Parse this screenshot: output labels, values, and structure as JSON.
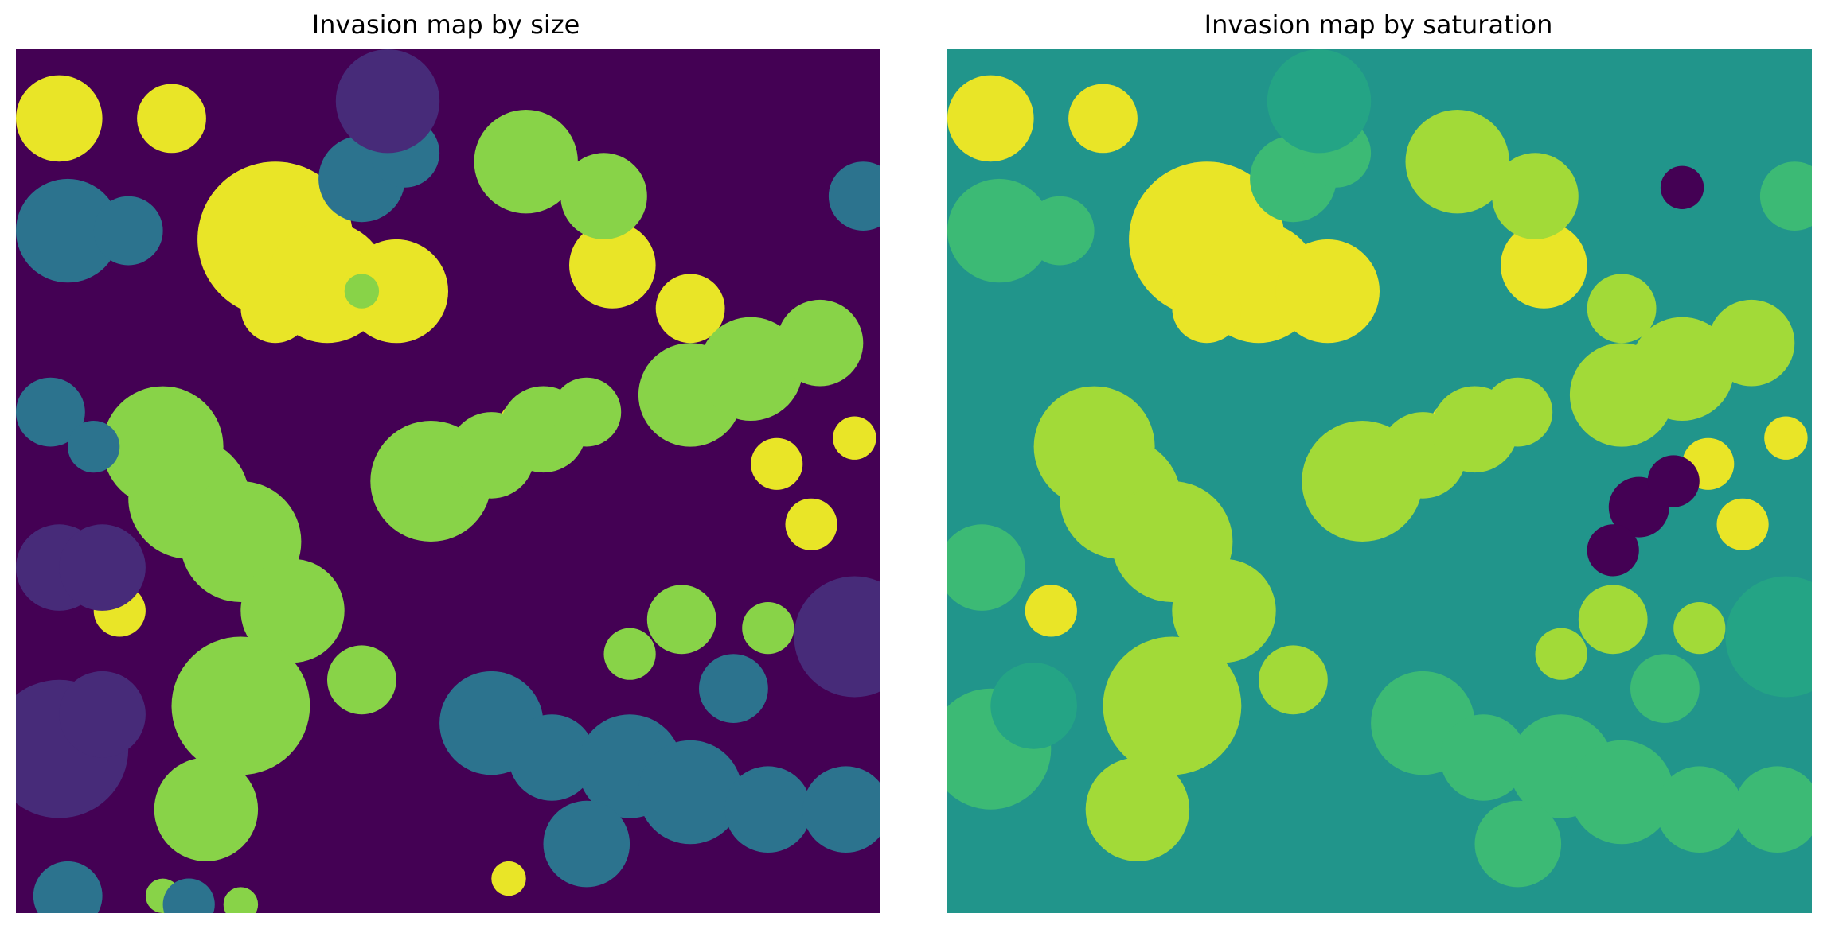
{
  "chart_data": [
    {
      "type": "heatmap",
      "title": "Invasion map by size",
      "xlabel": "",
      "ylabel": "",
      "axes_visible": false,
      "grid": false,
      "legend": "none",
      "colormap": "viridis",
      "background_value": 0.0,
      "regions": [
        {
          "value": 0.97,
          "blobs": [
            [
              0.05,
              0.92,
              0.05
            ],
            [
              0.18,
              0.92,
              0.04
            ],
            [
              0.3,
              0.78,
              0.09
            ],
            [
              0.36,
              0.73,
              0.07
            ],
            [
              0.3,
              0.7,
              0.04
            ],
            [
              0.44,
              0.72,
              0.06
            ],
            [
              0.69,
              0.75,
              0.05
            ],
            [
              0.78,
              0.7,
              0.04
            ],
            [
              0.88,
              0.52,
              0.03
            ],
            [
              0.92,
              0.45,
              0.03
            ],
            [
              0.97,
              0.55,
              0.025
            ],
            [
              0.12,
              0.35,
              0.03
            ],
            [
              0.58,
              0.57,
              0.02
            ],
            [
              0.57,
              0.04,
              0.02
            ]
          ]
        },
        {
          "value": 0.82,
          "blobs": [
            [
              0.2,
              0.48,
              0.07
            ],
            [
              0.17,
              0.54,
              0.07
            ],
            [
              0.26,
              0.43,
              0.07
            ],
            [
              0.32,
              0.35,
              0.06
            ],
            [
              0.26,
              0.24,
              0.08
            ],
            [
              0.22,
              0.12,
              0.06
            ],
            [
              0.4,
              0.27,
              0.04
            ],
            [
              0.48,
              0.5,
              0.07
            ],
            [
              0.55,
              0.53,
              0.05
            ],
            [
              0.61,
              0.56,
              0.05
            ],
            [
              0.66,
              0.58,
              0.04
            ],
            [
              0.78,
              0.6,
              0.06
            ],
            [
              0.85,
              0.63,
              0.06
            ],
            [
              0.93,
              0.66,
              0.05
            ],
            [
              0.59,
              0.87,
              0.06
            ],
            [
              0.68,
              0.83,
              0.05
            ],
            [
              0.71,
              0.3,
              0.03
            ],
            [
              0.77,
              0.34,
              0.04
            ],
            [
              0.87,
              0.33,
              0.03
            ],
            [
              0.4,
              0.72,
              0.02
            ],
            [
              0.17,
              0.02,
              0.02
            ],
            [
              0.26,
              0.01,
              0.02
            ]
          ]
        },
        {
          "value": 0.38,
          "blobs": [
            [
              0.06,
              0.79,
              0.06
            ],
            [
              0.13,
              0.79,
              0.04
            ],
            [
              0.04,
              0.58,
              0.04
            ],
            [
              0.09,
              0.54,
              0.03
            ],
            [
              0.4,
              0.85,
              0.05
            ],
            [
              0.45,
              0.88,
              0.04
            ],
            [
              0.98,
              0.83,
              0.04
            ],
            [
              0.55,
              0.22,
              0.06
            ],
            [
              0.62,
              0.18,
              0.05
            ],
            [
              0.71,
              0.17,
              0.06
            ],
            [
              0.78,
              0.14,
              0.06
            ],
            [
              0.87,
              0.12,
              0.05
            ],
            [
              0.96,
              0.12,
              0.05
            ],
            [
              0.66,
              0.08,
              0.05
            ],
            [
              0.83,
              0.26,
              0.04
            ],
            [
              0.06,
              0.02,
              0.04
            ],
            [
              0.2,
              0.01,
              0.03
            ]
          ]
        },
        {
          "value": 0.12,
          "blobs": [
            [
              0.43,
              0.94,
              0.06
            ],
            [
              0.05,
              0.4,
              0.05
            ],
            [
              0.1,
              0.4,
              0.05
            ],
            [
              0.05,
              0.19,
              0.08
            ],
            [
              0.1,
              0.23,
              0.05
            ],
            [
              0.97,
              0.32,
              0.07
            ]
          ]
        }
      ]
    },
    {
      "type": "heatmap",
      "title": "Invasion map by saturation",
      "xlabel": "",
      "ylabel": "",
      "axes_visible": false,
      "grid": false,
      "legend": "none",
      "colormap": "viridis",
      "background_value": 0.52,
      "regions": [
        {
          "value": 0.97,
          "blobs": [
            [
              0.05,
              0.92,
              0.05
            ],
            [
              0.18,
              0.92,
              0.04
            ],
            [
              0.3,
              0.78,
              0.09
            ],
            [
              0.36,
              0.73,
              0.07
            ],
            [
              0.3,
              0.7,
              0.04
            ],
            [
              0.44,
              0.72,
              0.06
            ],
            [
              0.69,
              0.75,
              0.05
            ],
            [
              0.88,
              0.52,
              0.03
            ],
            [
              0.92,
              0.45,
              0.03
            ],
            [
              0.97,
              0.55,
              0.025
            ],
            [
              0.12,
              0.35,
              0.03
            ],
            [
              0.58,
              0.57,
              0.02
            ]
          ]
        },
        {
          "value": 0.86,
          "blobs": [
            [
              0.2,
              0.48,
              0.07
            ],
            [
              0.17,
              0.54,
              0.07
            ],
            [
              0.26,
              0.43,
              0.07
            ],
            [
              0.32,
              0.35,
              0.06
            ],
            [
              0.26,
              0.24,
              0.08
            ],
            [
              0.22,
              0.12,
              0.06
            ],
            [
              0.4,
              0.27,
              0.04
            ],
            [
              0.48,
              0.5,
              0.07
            ],
            [
              0.55,
              0.53,
              0.05
            ],
            [
              0.61,
              0.56,
              0.05
            ],
            [
              0.66,
              0.58,
              0.04
            ],
            [
              0.78,
              0.6,
              0.06
            ],
            [
              0.85,
              0.63,
              0.06
            ],
            [
              0.93,
              0.66,
              0.05
            ],
            [
              0.59,
              0.87,
              0.06
            ],
            [
              0.68,
              0.83,
              0.05
            ],
            [
              0.78,
              0.7,
              0.04
            ],
            [
              0.71,
              0.3,
              0.03
            ],
            [
              0.77,
              0.34,
              0.04
            ],
            [
              0.87,
              0.33,
              0.03
            ]
          ]
        },
        {
          "value": 0.68,
          "blobs": [
            [
              0.4,
              0.85,
              0.05
            ],
            [
              0.45,
              0.88,
              0.04
            ],
            [
              0.55,
              0.22,
              0.06
            ],
            [
              0.62,
              0.18,
              0.05
            ],
            [
              0.71,
              0.17,
              0.06
            ],
            [
              0.78,
              0.14,
              0.06
            ],
            [
              0.87,
              0.12,
              0.05
            ],
            [
              0.96,
              0.12,
              0.05
            ],
            [
              0.66,
              0.08,
              0.05
            ],
            [
              0.83,
              0.26,
              0.04
            ],
            [
              0.06,
              0.79,
              0.06
            ],
            [
              0.13,
              0.79,
              0.04
            ],
            [
              0.04,
              0.4,
              0.05
            ],
            [
              0.05,
              0.19,
              0.07
            ],
            [
              0.98,
              0.83,
              0.04
            ]
          ]
        },
        {
          "value": 0.58,
          "blobs": [
            [
              0.43,
              0.94,
              0.06
            ],
            [
              0.97,
              0.32,
              0.07
            ],
            [
              0.1,
              0.24,
              0.05
            ]
          ]
        },
        {
          "value": 0.0,
          "blobs": [
            [
              0.85,
              0.84,
              0.025
            ],
            [
              0.8,
              0.47,
              0.035
            ],
            [
              0.84,
              0.5,
              0.03
            ],
            [
              0.77,
              0.42,
              0.03
            ]
          ]
        }
      ]
    }
  ]
}
